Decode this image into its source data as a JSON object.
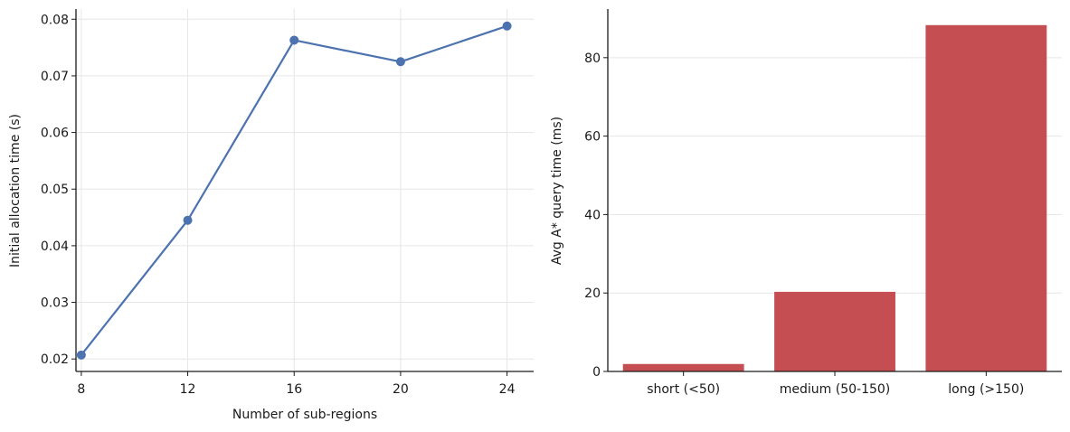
{
  "chart_data": [
    {
      "type": "line",
      "title": "",
      "xlabel": "Number of sub-regions",
      "ylabel": "Initial allocation time (s)",
      "x": [
        8,
        12,
        16,
        20,
        24
      ],
      "xticks": [
        "8",
        "12",
        "16",
        "20",
        "24"
      ],
      "xlim": [
        7.8,
        25.0
      ],
      "ylim": [
        0.0178,
        0.0818
      ],
      "yticks": [
        "0.02",
        "0.03",
        "0.04",
        "0.05",
        "0.06",
        "0.07",
        "0.08"
      ],
      "ytick_values": [
        0.02,
        0.03,
        0.04,
        0.05,
        0.06,
        0.07,
        0.08
      ],
      "grid": true,
      "color": "#4c72b0",
      "series": [
        {
          "values": [
            0.0207,
            0.0445,
            0.0763,
            0.0725,
            0.0788
          ]
        }
      ]
    },
    {
      "type": "bar",
      "title": "",
      "xlabel": "",
      "ylabel": "Avg A* query time (ms)",
      "categories": [
        "short (<50)",
        "medium (50-150)",
        "long (>150)"
      ],
      "values": [
        1.9,
        20.3,
        88.3
      ],
      "ylim": [
        0,
        92.4
      ],
      "yticks": [
        "0",
        "20",
        "40",
        "60",
        "80"
      ],
      "ytick_values": [
        0,
        20,
        40,
        60,
        80
      ],
      "grid": true,
      "color": "#c44e52"
    }
  ]
}
